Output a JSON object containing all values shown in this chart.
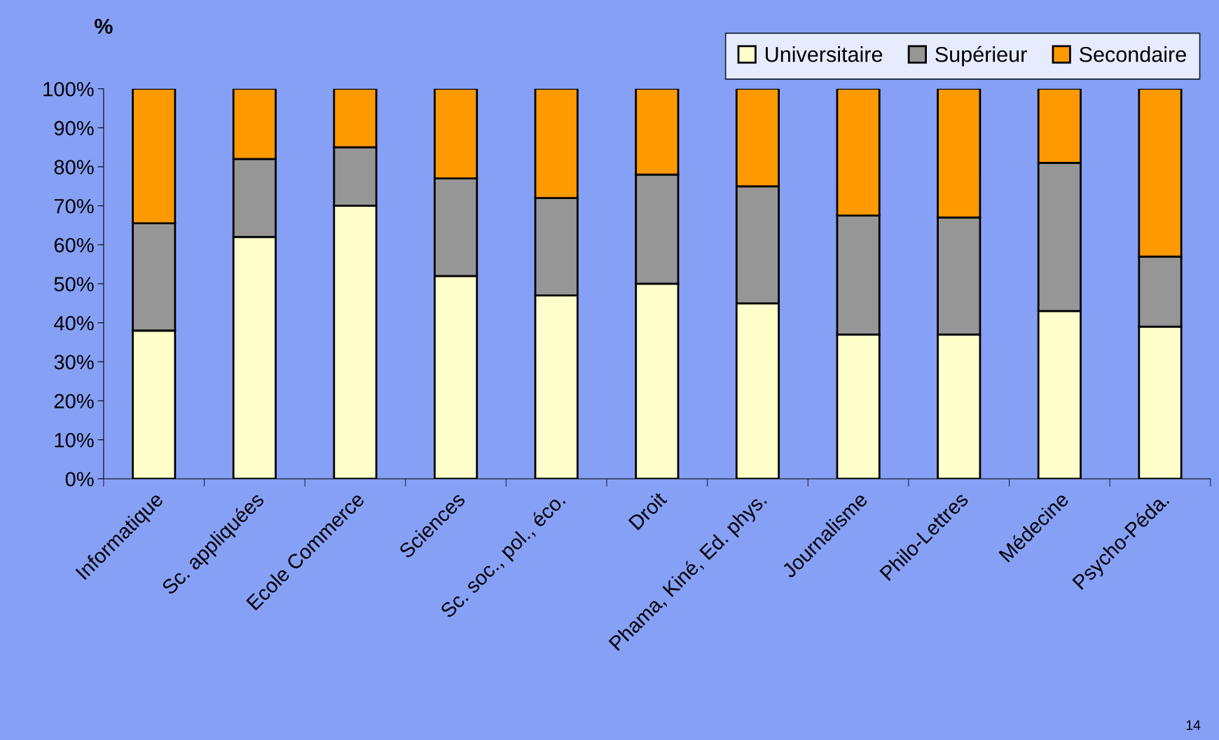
{
  "chart_data": {
    "type": "bar",
    "stacked": true,
    "ylabel": "%",
    "categories": [
      "Informatique",
      "Sc. appliquées",
      "Ecole Commerce",
      "Sciences",
      "Sc. soc., pol., éco.",
      "Droit",
      "Phama, Kiné, Ed. phys.",
      "Journalisme",
      "Philo-Lettres",
      "Médecine",
      "Psycho-Péda."
    ],
    "series": [
      {
        "name": "Universitaire",
        "color": "#ffffcc",
        "values": [
          38,
          62,
          70,
          52,
          47,
          50,
          45,
          37,
          37,
          43,
          39
        ]
      },
      {
        "name": "Supérieur",
        "color": "#969696",
        "values": [
          27.5,
          20,
          15,
          25,
          25,
          28,
          30,
          30.5,
          30,
          38,
          18
        ]
      },
      {
        "name": "Secondaire",
        "color": "#ff9900",
        "values": [
          34.5,
          18,
          15,
          23,
          28,
          22,
          25,
          32.5,
          33,
          19,
          43
        ]
      }
    ],
    "ylim": [
      0,
      100
    ],
    "yticks": [
      {
        "value": 0,
        "label": "0%"
      },
      {
        "value": 10,
        "label": "10%"
      },
      {
        "value": 20,
        "label": "20%"
      },
      {
        "value": 30,
        "label": "30%"
      },
      {
        "value": 40,
        "label": "40%"
      },
      {
        "value": 50,
        "label": "50%"
      },
      {
        "value": 60,
        "label": "60%"
      },
      {
        "value": 70,
        "label": "70%"
      },
      {
        "value": 80,
        "label": "80%"
      },
      {
        "value": 90,
        "label": "90%"
      },
      {
        "value": 100,
        "label": "100%"
      }
    ],
    "legend": "top right",
    "grid": false,
    "annotations": [
      "14"
    ]
  }
}
